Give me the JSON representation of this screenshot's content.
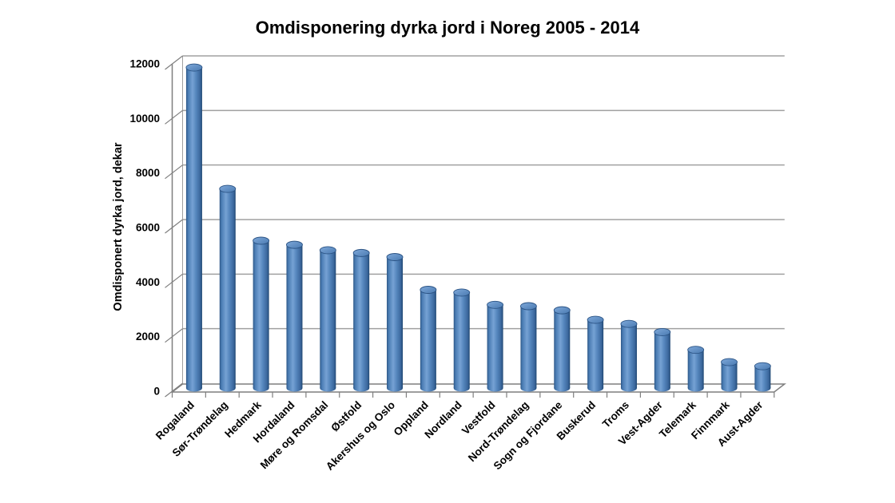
{
  "title": "Omdisponering dyrka jord i Noreg 2005 - 2014",
  "colors": {
    "background": "#ffffff",
    "bar_main": "#4f81bd",
    "bar_gradient": [
      "#2d5787",
      "#4a7cb3",
      "#76a2d4",
      "#5586bd",
      "#3b679c",
      "#1e4671"
    ],
    "bar_top_gradient": [
      "#7fa9da",
      "#4a7ab1"
    ],
    "bar_outline": "#2b5384",
    "gridline": "#a0a0a0",
    "axis": "#7f7f7f",
    "text": "#000000"
  },
  "chart_data": {
    "type": "bar",
    "style": "3d-cylinder",
    "title": "Omdisponering dyrka jord i Noreg 2005 - 2014",
    "xlabel": "",
    "ylabel": "Omdisponert dyrka jord, dekar",
    "ylim": [
      0,
      12000
    ],
    "ytick_interval": 2000,
    "yticks": [
      0,
      2000,
      4000,
      6000,
      8000,
      10000,
      12000
    ],
    "grid": true,
    "legend": false,
    "categories": [
      "Rogaland",
      "Sør-Trøndelag",
      "Hedmark",
      "Hordaland",
      "Møre og Romsdal",
      "Østfold",
      "Akershus og Oslo",
      "Oppland",
      "Nordland",
      "Vestfold",
      "Nord-Trøndelag",
      "Sogn og Fjordane",
      "Buskerud",
      "Troms",
      "Vest-Agder",
      "Telemark",
      "Finnmark",
      "Aust-Agder"
    ],
    "values": [
      11750,
      7300,
      5400,
      5250,
      5050,
      4950,
      4800,
      3600,
      3500,
      3050,
      3000,
      2850,
      2500,
      2350,
      2050,
      1400,
      950,
      800
    ]
  }
}
